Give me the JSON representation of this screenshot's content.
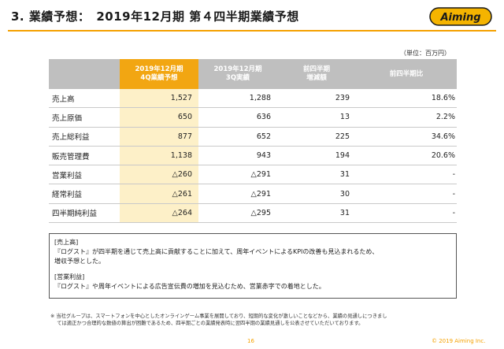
{
  "header": {
    "title": "3. 業績予想：　2019年12月期 第４四半期業績予想",
    "logo_text": "Aiming",
    "accent_color": "#f5a100"
  },
  "unit_note": "（単位：百万円）",
  "table": {
    "columns": [
      "",
      "2019年12月期\n4Q業績予想",
      "2019年12月期\n3Q実績",
      "前四半期\n増減額",
      "前四半期比"
    ],
    "rows": [
      {
        "label": "売上高",
        "forecast": "1,527",
        "q3": "1,288",
        "diff": "239",
        "ratio": "18.6%"
      },
      {
        "label": "売上原価",
        "forecast": "650",
        "q3": "636",
        "diff": "13",
        "ratio": "2.2%"
      },
      {
        "label": "売上総利益",
        "forecast": "877",
        "q3": "652",
        "diff": "225",
        "ratio": "34.6%"
      },
      {
        "label": "販売管理費",
        "forecast": "1,138",
        "q3": "943",
        "diff": "194",
        "ratio": "20.6%"
      },
      {
        "label": "営業利益",
        "forecast": "△260",
        "q3": "△291",
        "diff": "31",
        "ratio": "-"
      },
      {
        "label": "経常利益",
        "forecast": "△261",
        "q3": "△291",
        "diff": "30",
        "ratio": "-"
      },
      {
        "label": "四半期純利益",
        "forecast": "△264",
        "q3": "△295",
        "diff": "31",
        "ratio": "-"
      }
    ]
  },
  "notes": {
    "sales_heading": "[売上高]",
    "sales_text": "『ログスト』が四半期を通じて売上高に貢献することに加えて、周年イベントによるKPIの改善も見込まれるため、\n増収予想とした。",
    "op_heading": "[営業利益]",
    "op_text": "『ログスト』や周年イベントによる広告宣伝費の増加を見込むため、営業赤字での着地とした。"
  },
  "footnote": "※ 当社グループは、スマートフォンを中心としたオンラインゲーム事業を展開しており、短期的な変化が激しいことなどから、業績の見通しにつきまし\n　 ては適正かつ合理的な数値の算出が困難であるため、四半期ごとの業績発表時に翌四半期の業績見通しを公表させていただいております。",
  "footer": {
    "page_number": "16",
    "copyright": "© 2019 Aiming Inc."
  }
}
